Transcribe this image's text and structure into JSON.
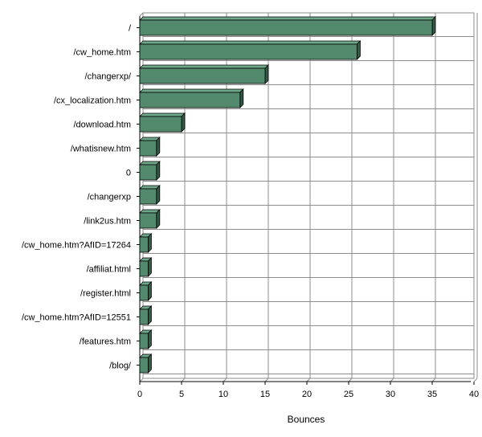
{
  "colors": {
    "bar_front": "#538a6e",
    "bar_top": "#6ea88a",
    "bar_side": "#2f5c45",
    "bar_edge": "#000000",
    "grid": "#8c8c8c",
    "plot_bg": "#ffffff"
  },
  "chart_data": {
    "type": "bar",
    "orientation": "horizontal",
    "style": "3d",
    "grid": true,
    "title": "",
    "xlabel": "Bounces",
    "ylabel": "",
    "xlim": [
      0,
      40
    ],
    "xticks": [
      0,
      5,
      10,
      15,
      20,
      25,
      30,
      35,
      40
    ],
    "categories": [
      "/",
      "/cw_home.htm",
      "/changerxp/",
      "/cx_localization.htm",
      "/download.htm",
      "/whatisnew.htm",
      "0",
      "/changerxp",
      "/link2us.htm",
      "/cw_home.htm?AfID=17264",
      "/affiliat.html",
      "/register.html",
      "/cw_home.htm?AfID=12551",
      "/features.htm",
      "/blog/"
    ],
    "values": [
      35,
      26,
      15,
      12,
      5,
      2,
      2,
      2,
      2,
      1,
      1,
      1,
      1,
      1,
      1
    ]
  }
}
